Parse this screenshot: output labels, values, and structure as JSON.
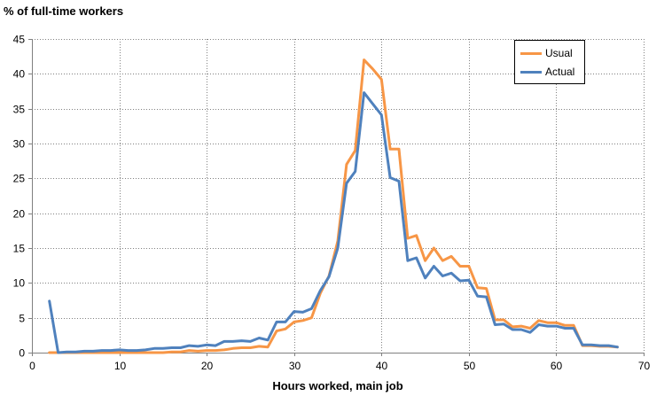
{
  "chart_data": {
    "type": "line",
    "ylabel": "% of full-time workers",
    "xlabel": "Hours worked, main job",
    "xlim": [
      0,
      70
    ],
    "ylim": [
      0,
      45
    ],
    "xticks": [
      0,
      10,
      20,
      30,
      40,
      50,
      60,
      70
    ],
    "yticks": [
      0,
      5,
      10,
      15,
      20,
      25,
      30,
      35,
      40,
      45
    ],
    "grid": true,
    "legend_position": "top-right",
    "series": [
      {
        "name": "Usual",
        "color": "#F79646",
        "points": [
          [
            2,
            0
          ],
          [
            3,
            0
          ],
          [
            4,
            0
          ],
          [
            5,
            0
          ],
          [
            6,
            0
          ],
          [
            7,
            0
          ],
          [
            8,
            0
          ],
          [
            9,
            0
          ],
          [
            10,
            0
          ],
          [
            11,
            0
          ],
          [
            12,
            0
          ],
          [
            13,
            0
          ],
          [
            14,
            0
          ],
          [
            15,
            0
          ],
          [
            16,
            0.1
          ],
          [
            17,
            0.1
          ],
          [
            18,
            0.3
          ],
          [
            19,
            0.2
          ],
          [
            20,
            0.3
          ],
          [
            21,
            0.3
          ],
          [
            22,
            0.4
          ],
          [
            23,
            0.6
          ],
          [
            24,
            0.7
          ],
          [
            25,
            0.7
          ],
          [
            26,
            0.9
          ],
          [
            27,
            0.8
          ],
          [
            28,
            3.1
          ],
          [
            29,
            3.4
          ],
          [
            30,
            4.4
          ],
          [
            31,
            4.6
          ],
          [
            32,
            5.0
          ],
          [
            33,
            8.5
          ],
          [
            34,
            11.0
          ],
          [
            35,
            16.0
          ],
          [
            36,
            27.0
          ],
          [
            37,
            29.0
          ],
          [
            38,
            42.0
          ],
          [
            39,
            40.7
          ],
          [
            40,
            39.2
          ],
          [
            41,
            29.2
          ],
          [
            42,
            29.2
          ],
          [
            43,
            16.4
          ],
          [
            44,
            16.8
          ],
          [
            45,
            13.2
          ],
          [
            46,
            15.0
          ],
          [
            47,
            13.2
          ],
          [
            48,
            13.8
          ],
          [
            49,
            12.4
          ],
          [
            50,
            12.4
          ],
          [
            51,
            9.3
          ],
          [
            52,
            9.2
          ],
          [
            53,
            4.7
          ],
          [
            54,
            4.7
          ],
          [
            55,
            3.7
          ],
          [
            56,
            3.8
          ],
          [
            57,
            3.5
          ],
          [
            58,
            4.6
          ],
          [
            59,
            4.3
          ],
          [
            60,
            4.3
          ],
          [
            61,
            3.9
          ],
          [
            62,
            3.9
          ],
          [
            63,
            1.0
          ],
          [
            64,
            1.0
          ],
          [
            65,
            0.9
          ],
          [
            66,
            0.9
          ],
          [
            67,
            0.8
          ]
        ]
      },
      {
        "name": "Actual",
        "color": "#4F81BD",
        "points": [
          [
            2,
            7.4
          ],
          [
            3,
            0
          ],
          [
            4,
            0.1
          ],
          [
            5,
            0.1
          ],
          [
            6,
            0.2
          ],
          [
            7,
            0.2
          ],
          [
            8,
            0.3
          ],
          [
            9,
            0.3
          ],
          [
            10,
            0.4
          ],
          [
            11,
            0.3
          ],
          [
            12,
            0.3
          ],
          [
            13,
            0.4
          ],
          [
            14,
            0.6
          ],
          [
            15,
            0.6
          ],
          [
            16,
            0.7
          ],
          [
            17,
            0.7
          ],
          [
            18,
            1.0
          ],
          [
            19,
            0.9
          ],
          [
            20,
            1.1
          ],
          [
            21,
            1.0
          ],
          [
            22,
            1.6
          ],
          [
            23,
            1.6
          ],
          [
            24,
            1.7
          ],
          [
            25,
            1.6
          ],
          [
            26,
            2.1
          ],
          [
            27,
            1.8
          ],
          [
            28,
            4.4
          ],
          [
            29,
            4.4
          ],
          [
            30,
            5.9
          ],
          [
            31,
            5.8
          ],
          [
            32,
            6.3
          ],
          [
            33,
            8.9
          ],
          [
            34,
            10.9
          ],
          [
            35,
            15.0
          ],
          [
            36,
            24.3
          ],
          [
            37,
            26.0
          ],
          [
            38,
            37.3
          ],
          [
            39,
            35.7
          ],
          [
            40,
            34.1
          ],
          [
            41,
            25.1
          ],
          [
            42,
            24.6
          ],
          [
            43,
            13.2
          ],
          [
            44,
            13.6
          ],
          [
            45,
            10.7
          ],
          [
            46,
            12.4
          ],
          [
            47,
            11.0
          ],
          [
            48,
            11.4
          ],
          [
            49,
            10.3
          ],
          [
            50,
            10.4
          ],
          [
            51,
            8.1
          ],
          [
            52,
            8.0
          ],
          [
            53,
            4.0
          ],
          [
            54,
            4.1
          ],
          [
            55,
            3.3
          ],
          [
            56,
            3.3
          ],
          [
            57,
            2.9
          ],
          [
            58,
            4.0
          ],
          [
            59,
            3.8
          ],
          [
            60,
            3.8
          ],
          [
            61,
            3.5
          ],
          [
            62,
            3.5
          ],
          [
            63,
            1.1
          ],
          [
            64,
            1.1
          ],
          [
            65,
            1.0
          ],
          [
            66,
            1.0
          ],
          [
            67,
            0.8
          ]
        ]
      }
    ]
  }
}
